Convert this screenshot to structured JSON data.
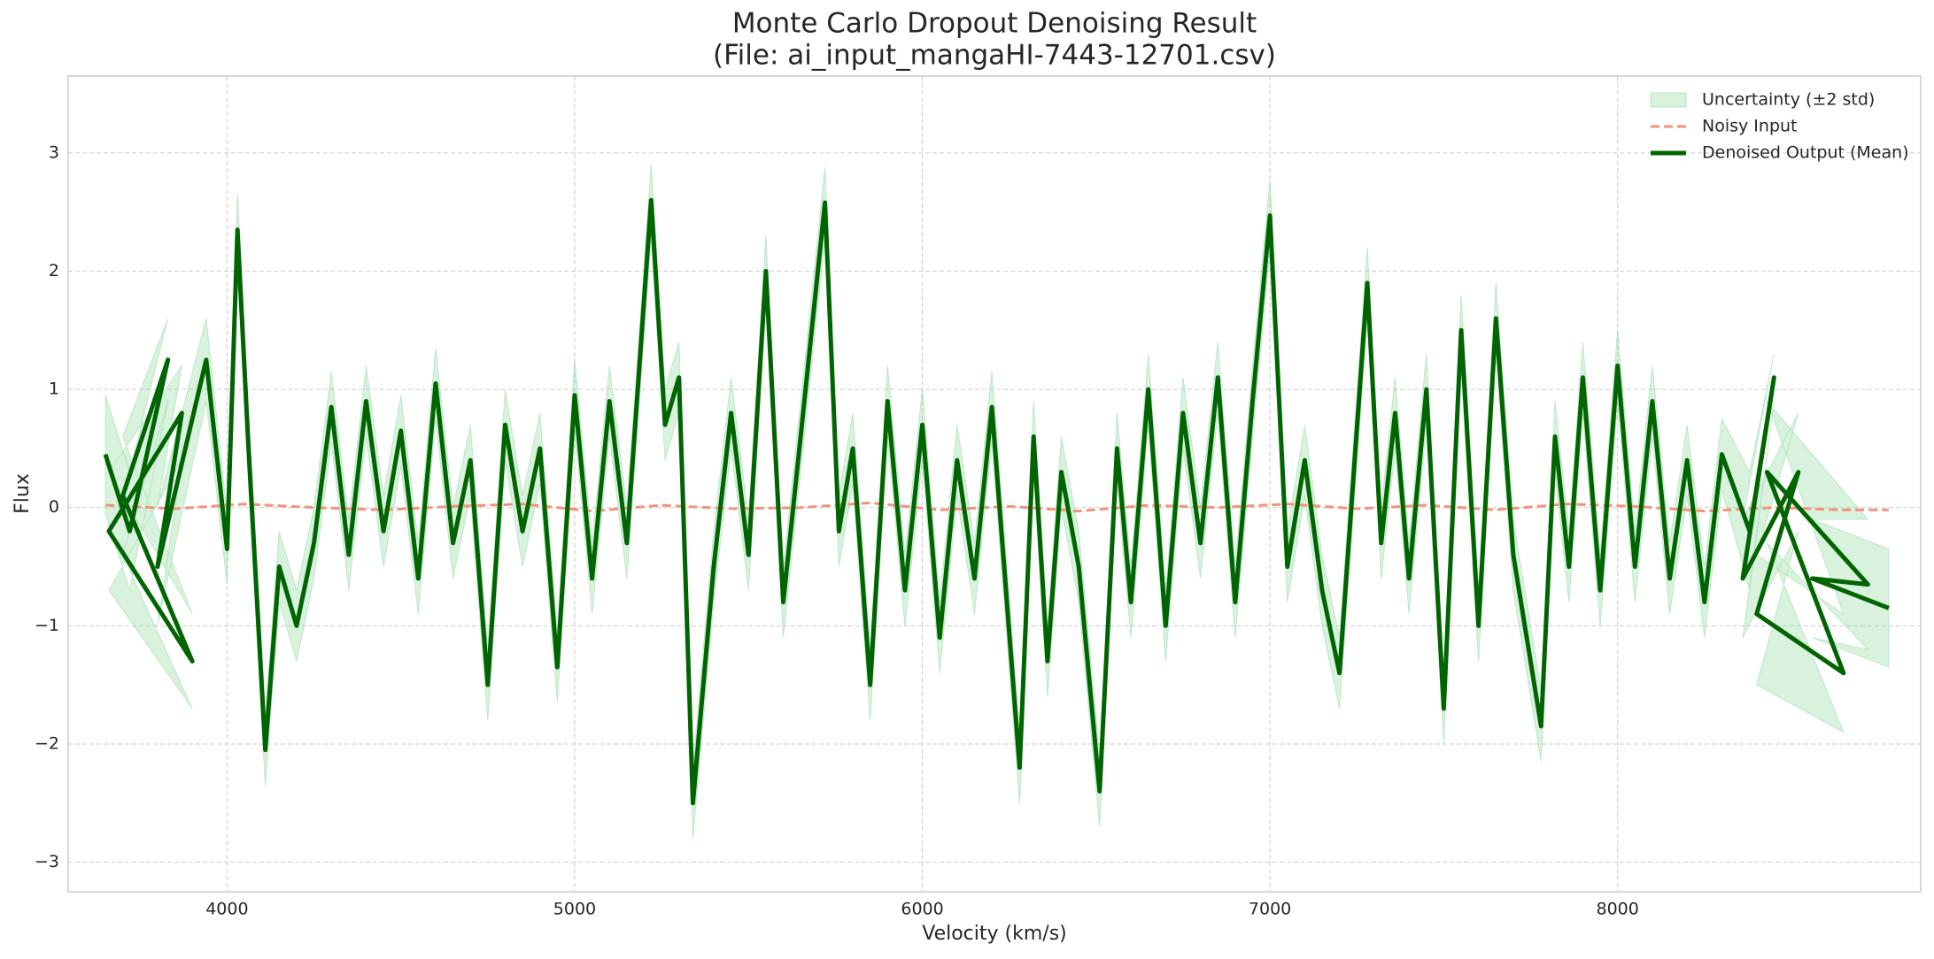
{
  "chart_data": {
    "type": "line",
    "title": "Monte Carlo Dropout Denoising Result",
    "subtitle": "(File: ai_input_mangaHI-7443-12701.csv)",
    "x_label": "Velocity (km/s)",
    "y_label": "Flux",
    "xlim": [
      3543,
      8872
    ],
    "ylim": [
      -3.25,
      3.65
    ],
    "xticks": [
      4000,
      5000,
      6000,
      7000,
      8000
    ],
    "yticks": [
      {
        "value": -3,
        "label": "−3"
      },
      {
        "value": -2,
        "label": "−2"
      },
      {
        "value": -1,
        "label": "−1"
      },
      0,
      1,
      2,
      3
    ],
    "grid": true,
    "legend": "upper right",
    "x": [
      3650,
      3720,
      3830,
      3700,
      3900,
      3660,
      3870,
      3800,
      3940,
      4000,
      4030,
      4060,
      4110,
      4150,
      4200,
      4250,
      4300,
      4350,
      4400,
      4450,
      4500,
      4550,
      4600,
      4650,
      4700,
      4750,
      4800,
      4850,
      4900,
      4950,
      5000,
      5050,
      5100,
      5150,
      5220,
      5260,
      5300,
      5340,
      5400,
      5450,
      5500,
      5550,
      5600,
      5650,
      5720,
      5760,
      5800,
      5850,
      5900,
      5950,
      6000,
      6050,
      6100,
      6150,
      6200,
      6280,
      6320,
      6360,
      6400,
      6450,
      6510,
      6560,
      6600,
      6650,
      6700,
      6750,
      6800,
      6850,
      6900,
      6950,
      7000,
      7050,
      7100,
      7150,
      7200,
      7280,
      7320,
      7360,
      7400,
      7450,
      7500,
      7550,
      7600,
      7650,
      7700,
      7780,
      7820,
      7860,
      7900,
      7950,
      8000,
      8050,
      8100,
      8150,
      8200,
      8250,
      8300,
      8380,
      8450,
      8360,
      8520,
      8400,
      8650,
      8430,
      8720,
      8560,
      8780
    ],
    "series": [
      {
        "name": "Uncertainty (±2 std)",
        "style": "band",
        "color": "#8fd9a0",
        "upper": [
          0.95,
          0.3,
          1.6,
          0.6,
          -0.9,
          0.3,
          1.2,
          0.0,
          1.6,
          -0.05,
          2.65,
          0.9,
          -1.75,
          -0.2,
          -0.7,
          0.0,
          1.15,
          -0.1,
          1.2,
          0.1,
          0.95,
          -0.3,
          1.35,
          0.0,
          0.7,
          -1.2,
          1.0,
          0.1,
          0.8,
          -1.05,
          1.25,
          -0.3,
          1.2,
          0.0,
          2.9,
          1.0,
          1.4,
          -2.2,
          -0.2,
          1.1,
          -0.1,
          2.3,
          -0.5,
          0.9,
          2.88,
          0.1,
          0.8,
          -1.2,
          1.2,
          -0.4,
          1.0,
          -0.8,
          0.7,
          -0.3,
          1.15,
          -1.9,
          0.9,
          -1.0,
          0.6,
          -0.2,
          -2.1,
          0.8,
          -0.5,
          1.3,
          -0.7,
          1.1,
          0.0,
          1.4,
          -0.5,
          1.2,
          2.77,
          -0.2,
          0.7,
          -0.4,
          -1.1,
          2.2,
          0.0,
          1.1,
          -0.3,
          1.3,
          -1.4,
          1.8,
          -0.7,
          1.9,
          -0.1,
          -1.55,
          0.9,
          -0.2,
          1.4,
          -0.4,
          1.5,
          -0.2,
          1.2,
          -0.3,
          0.7,
          -0.5,
          0.75,
          0.3,
          1.3,
          -0.1,
          0.8,
          -0.4,
          -0.9,
          0.9,
          -0.1,
          -0.1,
          -0.35
        ],
        "lower": [
          -0.05,
          -0.7,
          0.9,
          -0.4,
          -1.7,
          -0.7,
          0.4,
          -1.0,
          0.9,
          -0.65,
          2.05,
          0.3,
          -2.35,
          -0.8,
          -1.3,
          -0.6,
          0.55,
          -0.7,
          0.6,
          -0.5,
          0.35,
          -0.9,
          0.75,
          -0.6,
          0.1,
          -1.8,
          0.4,
          -0.5,
          0.2,
          -1.65,
          0.65,
          -0.9,
          0.6,
          -0.6,
          2.3,
          0.4,
          0.8,
          -2.8,
          -0.8,
          0.5,
          -0.7,
          1.7,
          -1.1,
          0.3,
          2.28,
          -0.5,
          0.2,
          -1.8,
          0.6,
          -1.0,
          0.4,
          -1.4,
          0.1,
          -0.9,
          0.55,
          -2.5,
          0.3,
          -1.6,
          0.0,
          -0.8,
          -2.7,
          0.2,
          -1.1,
          0.7,
          -1.3,
          0.5,
          -0.6,
          0.8,
          -1.1,
          0.6,
          2.17,
          -0.8,
          0.1,
          -1.0,
          -1.7,
          1.6,
          -0.6,
          0.5,
          -0.9,
          0.7,
          -2.0,
          1.2,
          -1.3,
          1.3,
          -0.7,
          -2.15,
          0.3,
          -0.8,
          0.8,
          -1.0,
          0.9,
          -0.8,
          0.6,
          -0.9,
          0.1,
          -1.1,
          0.15,
          -0.7,
          0.9,
          -1.1,
          -0.2,
          -1.5,
          -1.9,
          -0.3,
          -1.2,
          -1.1,
          -1.35
        ]
      },
      {
        "name": "Noisy Input",
        "style": "dashed",
        "color": "#f4937a",
        "x": [
          3650,
          3850,
          4050,
          4250,
          4450,
          4650,
          4850,
          5050,
          5250,
          5450,
          5650,
          5850,
          6050,
          6250,
          6450,
          6650,
          6850,
          7050,
          7250,
          7450,
          7650,
          7850,
          8050,
          8250,
          8450,
          8650,
          8780
        ],
        "values": [
          0.02,
          -0.01,
          0.03,
          0.0,
          -0.02,
          0.01,
          0.03,
          -0.03,
          0.02,
          -0.01,
          0.0,
          0.04,
          -0.02,
          0.01,
          -0.03,
          0.02,
          0.0,
          0.03,
          -0.01,
          0.02,
          -0.02,
          0.03,
          0.01,
          -0.03,
          0.0,
          -0.02,
          -0.02
        ]
      },
      {
        "name": "Denoised Output (Mean)",
        "style": "solid",
        "color": "#006400",
        "values": [
          0.45,
          -0.2,
          1.25,
          0.1,
          -1.3,
          -0.2,
          0.8,
          -0.5,
          1.25,
          -0.35,
          2.35,
          0.6,
          -2.05,
          -0.5,
          -1.0,
          -0.3,
          0.85,
          -0.4,
          0.9,
          -0.2,
          0.65,
          -0.6,
          1.05,
          -0.3,
          0.4,
          -1.5,
          0.7,
          -0.2,
          0.5,
          -1.35,
          0.95,
          -0.6,
          0.9,
          -0.3,
          2.6,
          0.7,
          1.1,
          -2.5,
          -0.5,
          0.8,
          -0.4,
          2.0,
          -0.8,
          0.6,
          2.58,
          -0.2,
          0.5,
          -1.5,
          0.9,
          -0.7,
          0.7,
          -1.1,
          0.4,
          -0.6,
          0.85,
          -2.2,
          0.6,
          -1.3,
          0.3,
          -0.5,
          -2.4,
          0.5,
          -0.8,
          1.0,
          -1.0,
          0.8,
          -0.3,
          1.1,
          -0.8,
          0.9,
          2.47,
          -0.5,
          0.4,
          -0.7,
          -1.4,
          1.9,
          -0.3,
          0.8,
          -0.6,
          1.0,
          -1.7,
          1.5,
          -1.0,
          1.6,
          -0.4,
          -1.85,
          0.6,
          -0.5,
          1.1,
          -0.7,
          1.2,
          -0.5,
          0.9,
          -0.6,
          0.4,
          -0.8,
          0.45,
          -0.2,
          1.1,
          -0.6,
          0.3,
          -0.9,
          -1.4,
          0.3,
          -0.65,
          -0.6,
          -0.85
        ]
      }
    ]
  }
}
